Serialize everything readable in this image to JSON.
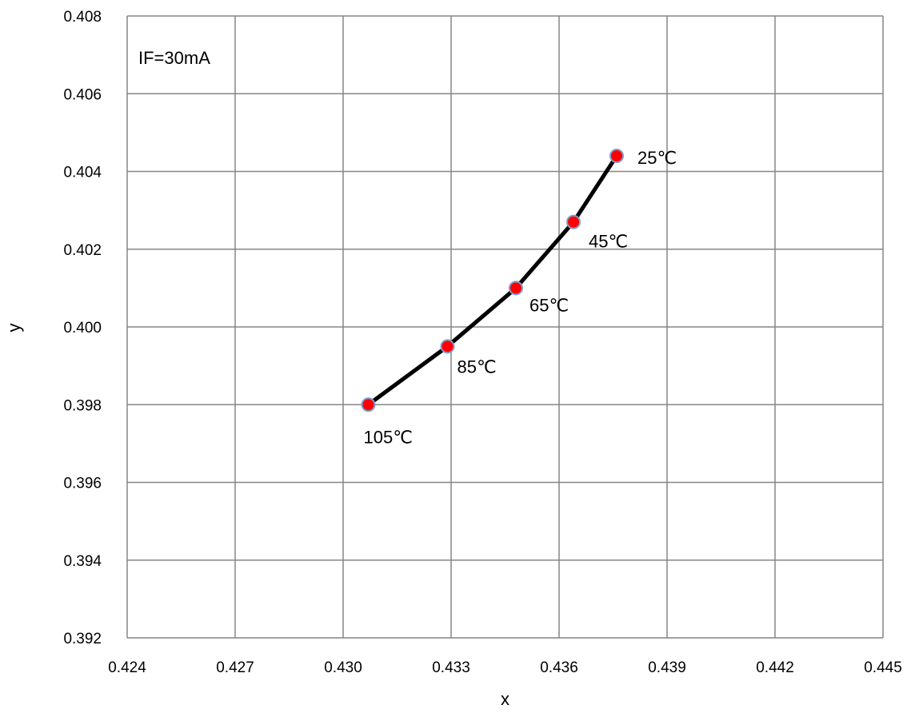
{
  "chart_data": {
    "type": "line",
    "xlabel": "x",
    "ylabel": "y",
    "xlim": [
      0.424,
      0.445
    ],
    "ylim": [
      0.392,
      0.408
    ],
    "x_ticks": [
      "0.424",
      "0.427",
      "0.430",
      "0.433",
      "0.436",
      "0.439",
      "0.442",
      "0.445"
    ],
    "y_ticks": [
      "0.392",
      "0.394",
      "0.396",
      "0.398",
      "0.400",
      "0.402",
      "0.404",
      "0.406",
      "0.408"
    ],
    "grid": true,
    "annotation": "IF=30mA",
    "series": [
      {
        "points": [
          {
            "x": 0.4307,
            "y": 0.398,
            "label": "105℃"
          },
          {
            "x": 0.4329,
            "y": 0.3995,
            "label": "85℃"
          },
          {
            "x": 0.4348,
            "y": 0.401,
            "label": "65℃"
          },
          {
            "x": 0.4364,
            "y": 0.4027,
            "label": "45℃"
          },
          {
            "x": 0.4376,
            "y": 0.4044,
            "label": "25℃"
          }
        ]
      }
    ],
    "colors": {
      "line": "#000000",
      "marker_fill": "#ff0000",
      "marker_stroke": "#7f9ccf",
      "grid": "#868686"
    }
  }
}
